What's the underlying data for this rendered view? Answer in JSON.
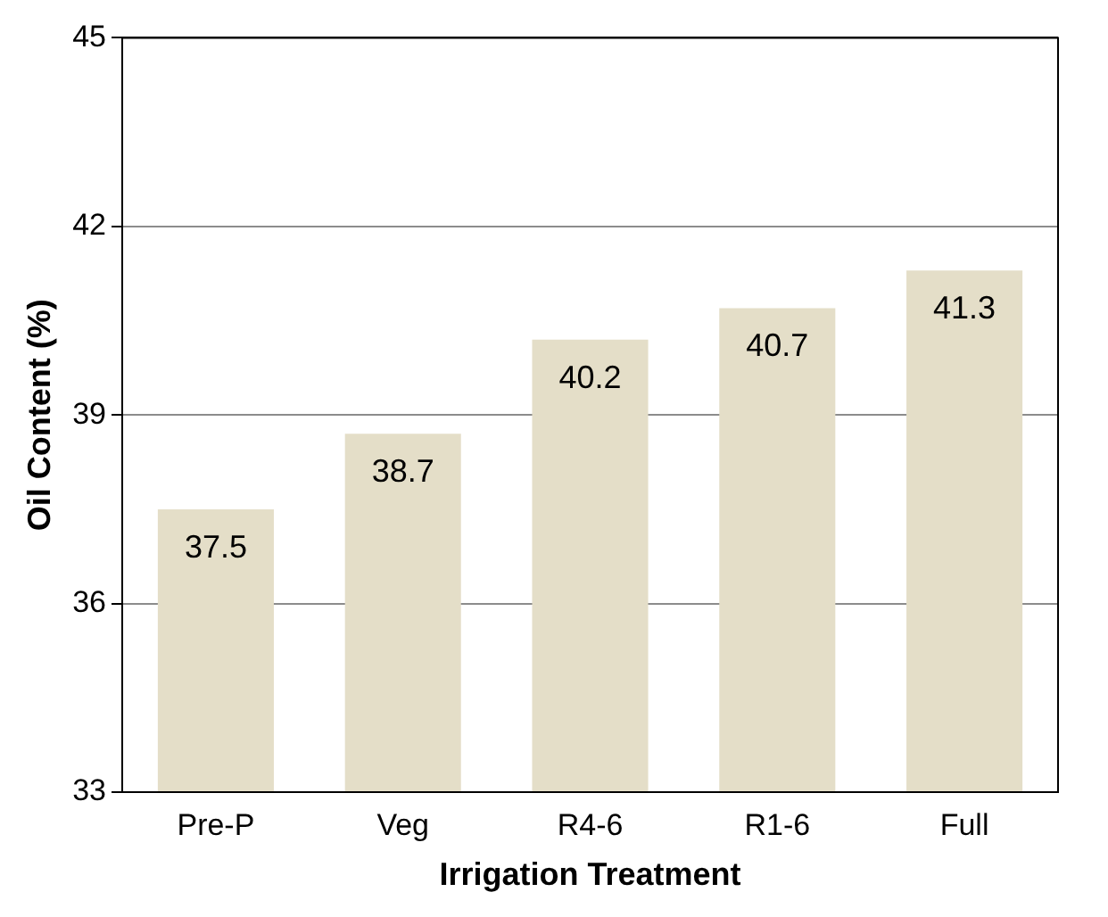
{
  "chart_data": {
    "type": "bar",
    "xlabel": "Irrigation Treatment",
    "ylabel": "Oil Content (%)",
    "categories": [
      "Pre-P",
      "Veg",
      "R4-6",
      "R1-6",
      "Full"
    ],
    "values": [
      37.5,
      38.7,
      40.2,
      40.7,
      41.3
    ],
    "color": "#e4dec8",
    "ylim": [
      33,
      45
    ],
    "yticks": [
      33,
      36,
      39,
      42,
      45
    ],
    "grid": "y",
    "data_labels": true
  }
}
